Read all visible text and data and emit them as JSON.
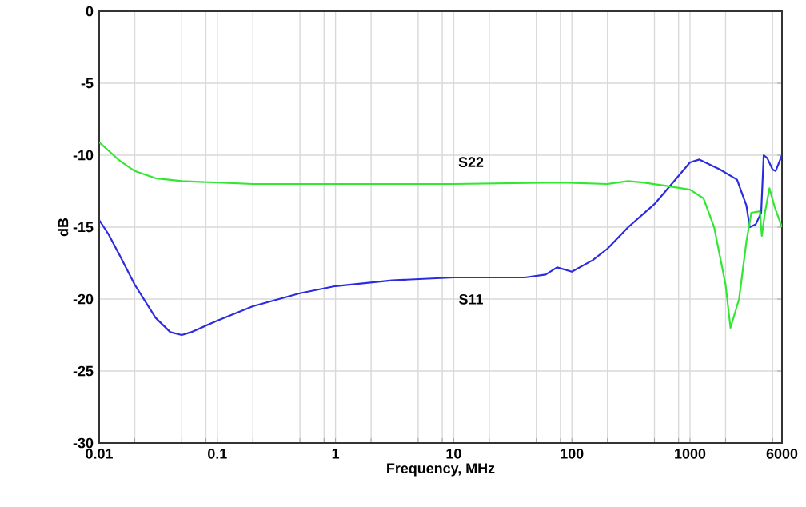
{
  "chart_data": {
    "type": "line",
    "xlabel": "Frequency, MHz",
    "ylabel": "dB",
    "log": "x",
    "grid": true,
    "line_style": "solid",
    "marker": "none",
    "xlim": [
      0.01,
      6000
    ],
    "ylim": [
      -30,
      0
    ],
    "xticks": [
      0.01,
      {
        "value": 0.02,
        "label": null
      },
      {
        "value": 0.05,
        "label": null
      },
      {
        "value": 0.08,
        "label": null
      },
      0.1,
      {
        "value": 0.2,
        "label": null
      },
      {
        "value": 0.5,
        "label": null
      },
      {
        "value": 0.8,
        "label": null
      },
      1,
      {
        "value": 2,
        "label": null
      },
      {
        "value": 5,
        "label": null
      },
      {
        "value": 8,
        "label": null
      },
      10,
      {
        "value": 20,
        "label": null
      },
      {
        "value": 50,
        "label": null
      },
      {
        "value": 80,
        "label": null
      },
      100,
      {
        "value": 200,
        "label": null
      },
      {
        "value": 500,
        "label": null
      },
      {
        "value": 800,
        "label": null
      },
      1000,
      {
        "value": 2000,
        "label": null
      },
      {
        "value": 5000,
        "label": null
      },
      6000
    ],
    "yticks": [
      -30,
      -25,
      -20,
      -15,
      -10,
      -5,
      0
    ],
    "series": [
      {
        "name": "S11",
        "color": "#2b2be0",
        "x": [
          0.01,
          0.012,
          0.015,
          0.02,
          0.03,
          0.04,
          0.05,
          0.06,
          0.1,
          0.2,
          0.5,
          1,
          3,
          10,
          40,
          60,
          75,
          100,
          150,
          200,
          300,
          500,
          700,
          1000,
          1200,
          1800,
          2500,
          3000,
          3200,
          3600,
          4000,
          4200,
          4500,
          5000,
          5300,
          6000
        ],
        "values": [
          -14.5,
          -15.5,
          -17,
          -19,
          -21.3,
          -22.3,
          -22.5,
          -22.3,
          -21.5,
          -20.5,
          -19.6,
          -19.1,
          -18.7,
          -18.5,
          -18.5,
          -18.3,
          -17.8,
          -18.1,
          -17.3,
          -16.5,
          -15,
          -13.4,
          -12,
          -10.5,
          -10.3,
          -11,
          -11.7,
          -13.5,
          -15,
          -14.8,
          -14,
          -10,
          -10.2,
          -11,
          -11.1,
          -10
        ]
      },
      {
        "name": "S22",
        "color": "#33e633",
        "x": [
          0.01,
          0.015,
          0.02,
          0.03,
          0.05,
          0.1,
          0.2,
          1,
          10,
          80,
          200,
          300,
          400,
          600,
          1000,
          1300,
          1600,
          2000,
          2200,
          2600,
          3000,
          3300,
          3900,
          4050,
          4300,
          4700,
          5200,
          6000
        ],
        "values": [
          -9.1,
          -10.4,
          -11.1,
          -11.6,
          -11.8,
          -11.9,
          -12,
          -12,
          -12,
          -11.9,
          -12,
          -11.8,
          -11.9,
          -12.1,
          -12.4,
          -13,
          -15,
          -19,
          -22,
          -20,
          -16,
          -14,
          -13.9,
          -15.6,
          -14,
          -12.3,
          -13.6,
          -15
        ]
      }
    ]
  }
}
